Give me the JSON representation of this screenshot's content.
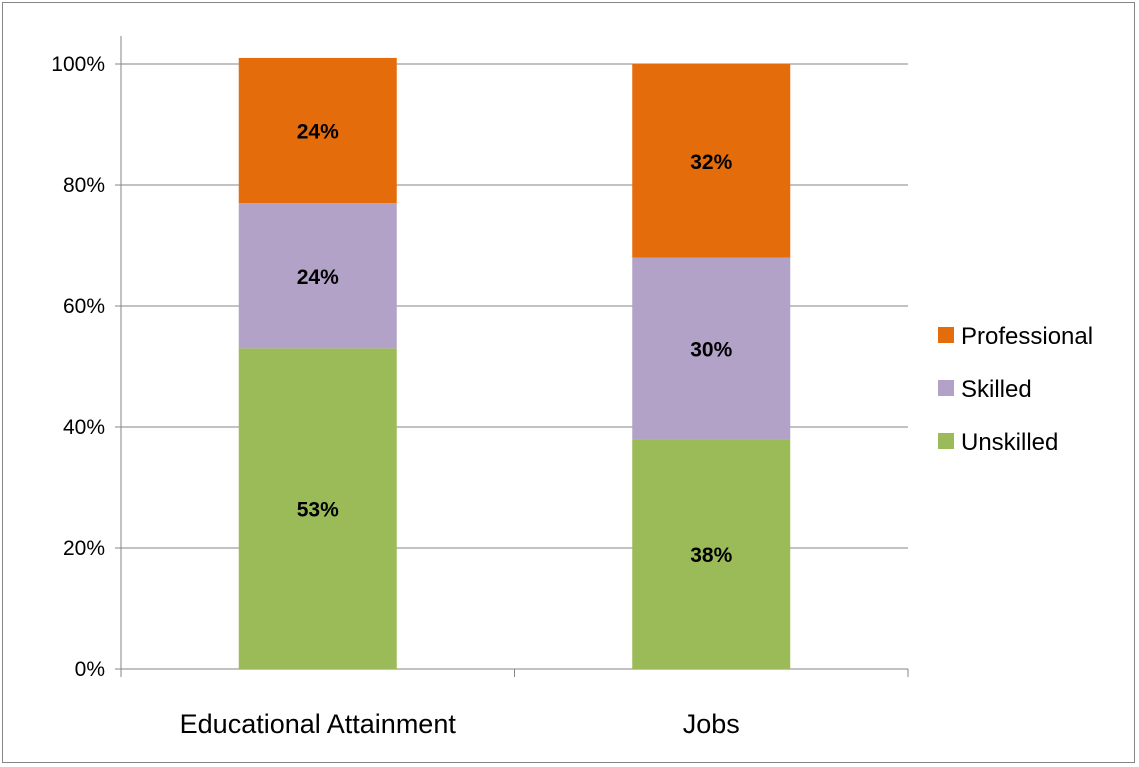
{
  "chart_data": {
    "type": "bar",
    "stacked": true,
    "categories": [
      "Educational Attainment",
      "Jobs"
    ],
    "series": [
      {
        "name": "Unskilled",
        "values": [
          53,
          38
        ],
        "color": "#9BBB59",
        "labels": [
          "53%",
          "38%"
        ]
      },
      {
        "name": "Skilled",
        "values": [
          24,
          30
        ],
        "color": "#B2A2C7",
        "labels": [
          "24%",
          "30%"
        ]
      },
      {
        "name": "Professional",
        "values": [
          24,
          32
        ],
        "color": "#E46C0A",
        "labels": [
          "24%",
          "32%"
        ]
      }
    ],
    "y_ticks": [
      "0%",
      "20%",
      "40%",
      "60%",
      "80%",
      "100%"
    ],
    "ylim": [
      0,
      100
    ],
    "grid": true,
    "legend_position": "right",
    "legend_order": [
      "Professional",
      "Skilled",
      "Unskilled"
    ]
  }
}
